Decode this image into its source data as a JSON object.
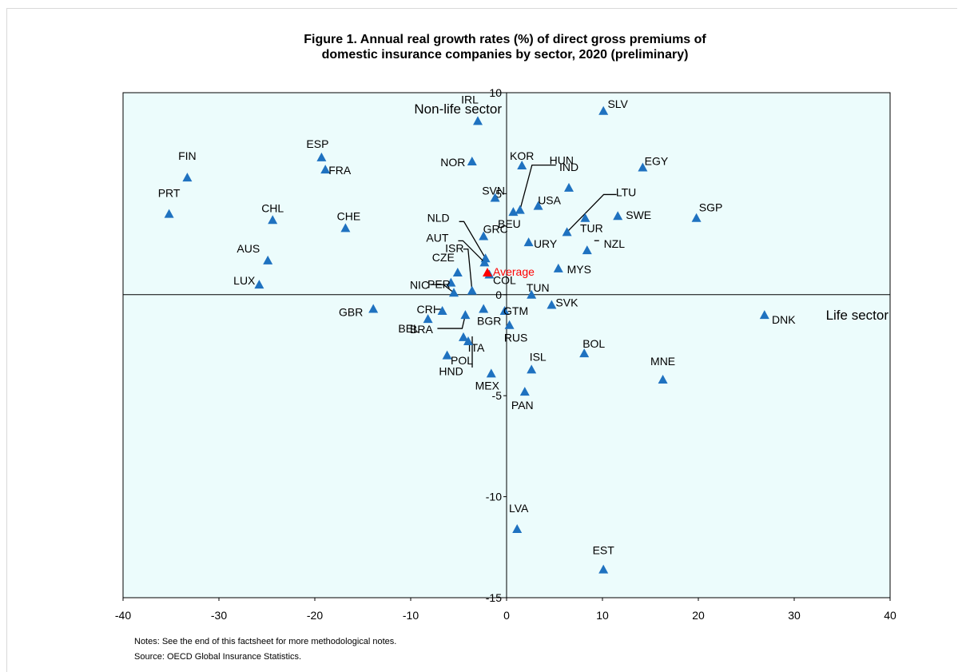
{
  "chart_data": {
    "type": "scatter",
    "title_line1": "Figure 1. Annual real growth rates (%) of direct gross premiums of",
    "title_line2": "domestic insurance companies by sector, 2020 (preliminary)",
    "xlabel": "Life sector",
    "ylabel": "Non-life sector",
    "xlim": [
      -40,
      40
    ],
    "ylim": [
      -15,
      10
    ],
    "x_ticks": [
      "-40",
      "-30",
      "-20",
      "-10",
      "0",
      "10",
      "20",
      "30",
      "40"
    ],
    "y_ticks": [
      "10",
      "5",
      "0",
      "-5",
      "-10",
      "-15"
    ],
    "grid": false,
    "plot_background": "#ecfcfc",
    "marker_color": "#1f72c0",
    "average_color": "#ff0000",
    "average": {
      "label": "Average",
      "x": -2.0,
      "y": 1.1
    },
    "points": [
      {
        "label": "FIN",
        "x": -33.3,
        "y": 5.8
      },
      {
        "label": "PRT",
        "x": -35.2,
        "y": 4.0
      },
      {
        "label": "ESP",
        "x": -19.3,
        "y": 6.8
      },
      {
        "label": "FRA",
        "x": -18.9,
        "y": 6.2
      },
      {
        "label": "CHL",
        "x": -24.4,
        "y": 3.7
      },
      {
        "label": "CHE",
        "x": -16.8,
        "y": 3.3
      },
      {
        "label": "AUS",
        "x": -24.9,
        "y": 1.7
      },
      {
        "label": "LUX",
        "x": -25.8,
        "y": 0.5
      },
      {
        "label": "IRL",
        "x": -3.0,
        "y": 8.6
      },
      {
        "label": "NOR",
        "x": -3.6,
        "y": 6.6
      },
      {
        "label": "SVN",
        "x": -1.2,
        "y": 4.8
      },
      {
        "label": "KOR",
        "x": 1.6,
        "y": 6.4
      },
      {
        "label": "HUN",
        "x": 1.4,
        "y": 4.2
      },
      {
        "label": "BEU",
        "x": 0.7,
        "y": 4.1
      },
      {
        "label": "USA",
        "x": 3.3,
        "y": 4.4
      },
      {
        "label": "IND",
        "x": 6.5,
        "y": 5.3
      },
      {
        "label": "LTU",
        "x": 6.3,
        "y": 3.1
      },
      {
        "label": "EGY",
        "x": 14.2,
        "y": 6.3
      },
      {
        "label": "SLV",
        "x": 10.1,
        "y": 9.1
      },
      {
        "label": "SGP",
        "x": 19.8,
        "y": 3.8
      },
      {
        "label": "SWE",
        "x": 11.6,
        "y": 3.9
      },
      {
        "label": "TUR",
        "x": 8.2,
        "y": 3.8
      },
      {
        "label": "NZL",
        "x": 8.4,
        "y": 2.2
      },
      {
        "label": "MYS",
        "x": 5.4,
        "y": 1.3
      },
      {
        "label": "URY",
        "x": 2.3,
        "y": 2.6
      },
      {
        "label": "GRC",
        "x": -2.4,
        "y": 2.9
      },
      {
        "label": "NLD",
        "x": -2.2,
        "y": 1.8
      },
      {
        "label": "AUT",
        "x": -2.3,
        "y": 1.6
      },
      {
        "label": "ISR",
        "x": -3.6,
        "y": 0.2
      },
      {
        "label": "CZE",
        "x": -5.1,
        "y": 1.1
      },
      {
        "label": "COL",
        "x": -1.8,
        "y": 1.0
      },
      {
        "label": "PER",
        "x": -5.8,
        "y": 0.6
      },
      {
        "label": "NIC",
        "x": -5.5,
        "y": 0.1
      },
      {
        "label": "TUN",
        "x": 2.6,
        "y": 0.0
      },
      {
        "label": "GTM",
        "x": -0.2,
        "y": -0.8
      },
      {
        "label": "SVK",
        "x": 4.7,
        "y": -0.5
      },
      {
        "label": "GBR",
        "x": -13.9,
        "y": -0.7
      },
      {
        "label": "CRI",
        "x": -6.7,
        "y": -0.8
      },
      {
        "label": "BEL",
        "x": -8.2,
        "y": -1.2
      },
      {
        "label": "BGR",
        "x": -2.4,
        "y": -0.7
      },
      {
        "label": "RUS",
        "x": 0.3,
        "y": -1.5
      },
      {
        "label": "BRA",
        "x": -4.3,
        "y": -1.0
      },
      {
        "label": "ITA",
        "x": -4.5,
        "y": -2.1
      },
      {
        "label": "HND",
        "x": -6.2,
        "y": -3.0
      },
      {
        "label": "POL",
        "x": -4.0,
        "y": -2.3
      },
      {
        "label": "MEX",
        "x": -1.6,
        "y": -3.9
      },
      {
        "label": "ISL",
        "x": 2.6,
        "y": -3.7
      },
      {
        "label": "PAN",
        "x": 1.9,
        "y": -4.8
      },
      {
        "label": "BOL",
        "x": 8.1,
        "y": -2.9
      },
      {
        "label": "MNE",
        "x": 16.3,
        "y": -4.2
      },
      {
        "label": "DNK",
        "x": 26.9,
        "y": -1.0
      },
      {
        "label": "LVA",
        "x": 1.1,
        "y": -11.6
      },
      {
        "label": "EST",
        "x": 10.1,
        "y": -13.6
      }
    ]
  },
  "notes": "Notes: See the end of this factsheet for more methodological notes.",
  "source": "Source: OECD Global Insurance Statistics."
}
